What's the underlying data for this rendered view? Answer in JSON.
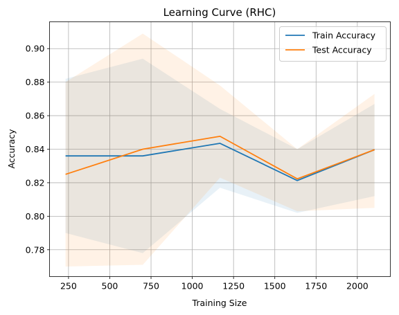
{
  "chart_data": {
    "type": "line",
    "title": "Learning Curve (RHC)",
    "xlabel": "Training Size",
    "ylabel": "Accuracy",
    "xlim": [
      135,
      2200
    ],
    "ylim": [
      0.764,
      0.916
    ],
    "xticks": [
      250,
      500,
      750,
      1000,
      1250,
      1500,
      1750,
      2000
    ],
    "yticks": [
      0.78,
      0.8,
      0.82,
      0.84,
      0.86,
      0.88,
      0.9
    ],
    "ytick_labels": [
      "0.78",
      "0.80",
      "0.82",
      "0.84",
      "0.86",
      "0.88",
      "0.90"
    ],
    "grid": true,
    "legend_position": "top-right",
    "x": [
      232,
      700,
      1168,
      1636,
      2104
    ],
    "series": [
      {
        "name": "Train Accuracy",
        "color": "#1f77b4",
        "values": [
          0.836,
          0.836,
          0.8435,
          0.8213,
          0.8397
        ],
        "band_upper": [
          0.882,
          0.894,
          0.864,
          0.84,
          0.867
        ],
        "band_lower": [
          0.79,
          0.778,
          0.817,
          0.802,
          0.812
        ]
      },
      {
        "name": "Test Accuracy",
        "color": "#ff7f0e",
        "values": [
          0.825,
          0.84,
          0.8477,
          0.8223,
          0.8397
        ],
        "band_upper": [
          0.88,
          0.909,
          0.878,
          0.84,
          0.873
        ],
        "band_lower": [
          0.77,
          0.771,
          0.823,
          0.803,
          0.805
        ]
      }
    ]
  }
}
